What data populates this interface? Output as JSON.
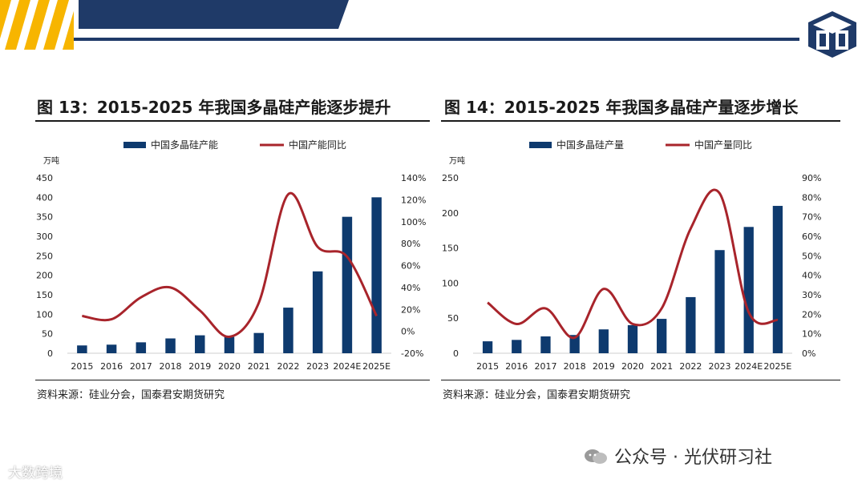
{
  "colors": {
    "bar": "#0e3a6e",
    "line": "#a8242b",
    "navy": "#1f3a68",
    "yellow": "#f7b500"
  },
  "footer": {
    "text": "公众号 · 光伏研习社",
    "bottom_left": "大数跨境"
  },
  "chart_data": [
    {
      "type": "bar",
      "title": "图 13：2015-2025 年我国多晶硅产能逐步提升",
      "source": "资料来源：硅业分会，国泰君安期货研究",
      "categories": [
        "2015",
        "2016",
        "2017",
        "2018",
        "2019",
        "2020",
        "2021",
        "2022",
        "2023",
        "2024E",
        "2025E"
      ],
      "series": [
        {
          "name": "中国多晶硅产能",
          "type": "bar",
          "axis": "left",
          "values": [
            20,
            22,
            28,
            38,
            46,
            42,
            52,
            117,
            210,
            350,
            400
          ]
        },
        {
          "name": "中国产能同比",
          "type": "line",
          "axis": "right",
          "values": [
            14,
            11,
            31,
            40,
            19,
            -5,
            26,
            125,
            77,
            68,
            14
          ]
        }
      ],
      "ylabel": "万吨",
      "ylim": [
        0,
        450
      ],
      "y_ticks": [
        "0",
        "50",
        "100",
        "150",
        "200",
        "250",
        "300",
        "350",
        "400",
        "450"
      ],
      "y2lim": [
        -20,
        140
      ],
      "y2_ticks": [
        "-20%",
        "0%",
        "20%",
        "40%",
        "60%",
        "80%",
        "100%",
        "120%",
        "140%"
      ],
      "legend": "top"
    },
    {
      "type": "bar",
      "title": "图 14：2015-2025 年我国多晶硅产量逐步增长",
      "source": "资料来源：硅业分会，国泰君安期货研究",
      "categories": [
        "2015",
        "2016",
        "2017",
        "2018",
        "2019",
        "2020",
        "2021",
        "2022",
        "2023",
        "2024E",
        "2025E"
      ],
      "series": [
        {
          "name": "中国多晶硅产量",
          "type": "bar",
          "axis": "left",
          "values": [
            17,
            19,
            24,
            26,
            34,
            40,
            49,
            80,
            147,
            180,
            210
          ]
        },
        {
          "name": "中国产量同比",
          "type": "line",
          "axis": "right",
          "values": [
            26,
            15,
            23,
            8,
            33,
            15,
            23,
            64,
            82,
            21,
            17
          ]
        }
      ],
      "ylabel": "万吨",
      "ylim": [
        0,
        250
      ],
      "y_ticks": [
        "0",
        "50",
        "100",
        "150",
        "200",
        "250"
      ],
      "y2lim": [
        0,
        90
      ],
      "y2_ticks": [
        "0%",
        "10%",
        "20%",
        "30%",
        "40%",
        "50%",
        "60%",
        "70%",
        "80%",
        "90%"
      ],
      "legend": "top"
    }
  ]
}
